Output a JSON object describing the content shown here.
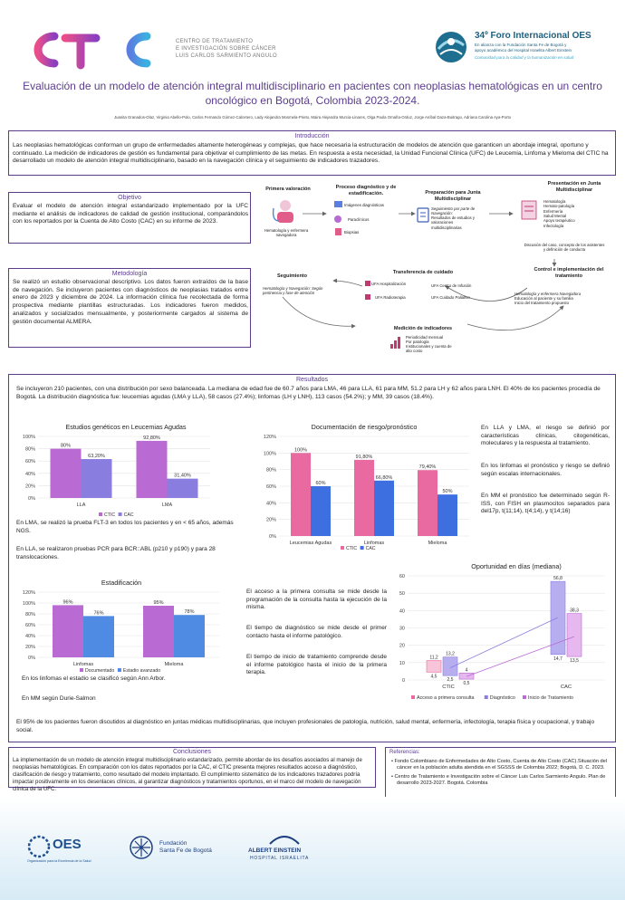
{
  "header": {
    "logo_left_text": "CTIC",
    "logo_left_sub": [
      "CENTRO DE TRATAMIENTO",
      "E INVESTIGACIÓN SOBRE CÁNCER",
      "LUIS CARLOS SARMIENTO ANGULO"
    ],
    "logo_right_title": "34º Foro Internacional OES",
    "logo_right_sub": [
      "En alianza con la Fundación Santa Fe de Bogotá y",
      "apoyo académico del Hospital Israelita Albert Einstein"
    ],
    "logo_right_tagline": "Comunidad para la calidad y la humanización en salud",
    "title_line1": "Evaluación de un modelo de atención integral multidisciplinario en pacientes con neoplasias hematológicas en un centro",
    "title_line2": "oncológico en Bogotá, Colombia 2023-2024.",
    "authors": "Juanita Granados-Olaz, Virginia Abello-Polo, Carlos Fernando Gómez-Calcetero, Lady Alejandra Mosmela-Prieto, Maira Alejandra Murcia-Linares, Olga Paola Omaña-Orduz, Jorge Aníbal Daza-Buitrago, Adriana Carolina Aya-Porto"
  },
  "intro": {
    "title": "Introducción",
    "text": "Las neoplasias hematológicas conforman un grupo de enfermedades altamente heterogéneas y complejas, que hace necesaria la estructuración de modelos de atención que garanticen un abordaje integral, oportuno y continuado. La medición de indicadores de gestión es fundamental para objetivar el cumplimiento de las metas. En respuesta a esta necesidad, la Unidad Funcional Clínica (UFC) de Leucemia, Linfoma y Mieloma del CTIC ha desarrollado un modelo de atención integral multidisciplinario, basado en la navegación clínica y el seguimiento de indicadores trazadores."
  },
  "objective": {
    "title": "Objetivo",
    "text": "Evaluar el modelo de atención integral estandarizado implementado por la UFC mediante el análisis de indicadores de calidad de gestión institucional, comparándolos con los reportados por la Cuenta de Alto Costo (CAC) en su informe de 2023."
  },
  "method": {
    "title": "Metodología",
    "text": "Se realizó un estudio observacional descriptivo. Los datos fueron extraídos de la base de navegación. Se incluyeron pacientes con diagnósticos de neoplasias tratados entre enero de 2023 y diciembre de 2024. La información clínica fue recolectada de forma prospectiva mediante plantillas estructuradas. Los indicadores fueron medidos, analizados y socializados mensualmente, y posteriormente cargados al sistema de gestión documental ALMERA."
  },
  "flow": {
    "primera": {
      "title": "Primera valoración",
      "text": "Hematología y enfermera navegadora"
    },
    "proceso": {
      "title": "Proceso diagnóstico y de estadificación.",
      "items": [
        "Imágenes diagnósticas",
        "Paraclínicos",
        "Biopsias"
      ]
    },
    "preparacion": {
      "title": "Preparación para Junta Multidisciplinar",
      "text": [
        "Seguimiento por parte de Navegación:",
        "Resultados de estudios y valoraciones",
        "multidisciplinarias"
      ]
    },
    "junta": {
      "title": "Presentación en Junta Multidisciplinar",
      "items": [
        "Hematología",
        "Hemato-patología",
        "Enfermería",
        "Salud Mental",
        "Apoyo terapéutico",
        "Infectología"
      ],
      "note": "Discusión del caso, concepto de los asistentes y definición de conducta"
    },
    "control": {
      "title": "Control e implementación del tratamiento",
      "text": [
        "Hematología y enfermera Navegadora",
        "Educación al paciente y su familia",
        "Inicio del tratamiento propuesto"
      ]
    },
    "transferencia": {
      "title": "Transferencia de cuidado",
      "items": [
        "UFA Hospitalización",
        "UFA Centro de Infusión",
        "UFA Radioterapia",
        "UFA Cuidado Paliativo"
      ]
    },
    "seguimiento": {
      "title": "Seguimiento",
      "text": "Hematología y Navegación: Según pertinencia y fase de atención"
    },
    "medicion": {
      "title": "Medición de indicadores",
      "text": [
        "Periodicidad mensual",
        "Por patología",
        "Institucionales y cuenta de",
        "alto costo"
      ]
    }
  },
  "results": {
    "title": "Resultados",
    "intro": "Se incluyeron 210 pacientes, con una distribución por sexo balanceada. La mediana de edad fue de 60.7 años para LMA, 46 para LLA, 61 para MM, 51.2 para LH y 62 años para LNH. El 40% de los pacientes procedía de Bogotá. La distribución diagnóstica fue: leucemias agudas (LMA y LLA), 58 casos (27.4%); linfomas (LH y LNH), 113 casos (54.2%); y MM, 39 casos (18.4%).",
    "lma_note": "En LMA, se realizó la prueba FLT-3 en todos los pacientes y en < 65 años, además NGS.",
    "lla_note": "En LLA, se realizaron pruebas PCR para BCR::ABL (p210 y p190) y para 28 translocaciones.",
    "risk_p1": "En LLA y LMA, el riesgo se definió por características clínicas, citogenéticas, moleculares y la respuesta al tratamiento.",
    "risk_p2": "En los linfomas el pronóstico y riesgo se definió según escalas internacionales.",
    "risk_p3": "En MM el pronóstico fue determinado según R-ISS, con FISH en plasmocitos separados para del17p, t(11;14), t(4;14), y t(14;16)",
    "stage_note1": "En los linfomas el estadio se clasificó según Ann Arbor.",
    "stage_note2": "En MM según Durie-Salmon",
    "times_p1": "El acceso a la primera consulta se mide desde la programación de la consulta hasta la ejecución de la misma.",
    "times_p2": "El tiempo de diagnóstico se mide desde el primer contacto hasta el informe patológico.",
    "times_p3": "El tiempo de inicio de tratamiento comprende desde el informe patológico hasta el inicio de la primera terapia.",
    "final": "El 95% de los pacientes fueron discutidos al diagnóstico en juntas médicas multidisciplinarias, que incluyen profesionales de patología, nutrición, salud mental, enfermería, infectología, terapia física y ocupacional, y trabajo social."
  },
  "conclusions": {
    "title": "Conclusiones",
    "text": "La implementación de un modelo de atención integral multidisciplinario estandarizado, permite abordar de los desafíos asociados al manejo de neoplasias hematológicas. En comparación con los datos reportados por la CAC, el CTIC presenta mejores resultados acceso a diagnóstico, clasificación de riesgo y tratamiento, como resultado del modelo implantado. El cumplimiento sistemático de los indicadores trazadores podría impactar positivamente en los desenlaces clínicos, al garantizar diagnósticos y tratamientos oportunos, en el marco del modelo de navegación clínica de la UFC."
  },
  "references": {
    "title": "Referencias:",
    "items": [
      "Fondo Colombiano de Enfermedades de Alto Costo, Cuenta de Alto Costo (CAC).Situación del cáncer en la población adulta atendida en el SGSSS de Colombia 2022; Bogotá, D. C. 2023.",
      "Centro de Tratamiento e Investigación sobre el Cáncer Luis Carlos Sarmiento Angulo. Plan de desarrollo 2023-2027. Bogotá. Colombia"
    ]
  },
  "footer": {
    "oes": "OES",
    "oes_sub": "Organización para la Excelencia de la Salud",
    "fsfb": [
      "Fundación",
      "Santa Fe de Bogotá"
    ],
    "einstein": [
      "ALBERT EINSTEIN",
      "HOSPITAL ISRAELITA"
    ]
  },
  "colors": {
    "ctic": "#b96ad3",
    "cac": "#8a7de0",
    "doc": "#b96ad3",
    "est": "#4f8ae3",
    "bar_ctic": "#e86aa0",
    "bar_cac": "#3d6fe0",
    "purple": "#5b3d8c"
  },
  "chart_data": [
    {
      "type": "bar",
      "title": "Estudios genéticos en Leucemias Agudas",
      "categories": [
        "LLA",
        "LMA"
      ],
      "series": [
        {
          "name": "CTIC",
          "values": [
            80,
            92.8
          ],
          "labels": [
            "80%",
            "92,80%"
          ]
        },
        {
          "name": "CAC",
          "values": [
            63.2,
            31.4
          ],
          "labels": [
            "63,20%",
            "31,40%"
          ]
        }
      ],
      "ylim": [
        0,
        100
      ],
      "yticks": [
        "0%",
        "20%",
        "40%",
        "60%",
        "80%",
        "100%"
      ]
    },
    {
      "type": "bar",
      "title": "Documentación de riesgo/pronóstico",
      "categories": [
        "Leucemias Agudas",
        "Linfomas",
        "Mieloma"
      ],
      "series": [
        {
          "name": "CTIC",
          "values": [
            100,
            91.8,
            79.4
          ],
          "labels": [
            "100%",
            "91,80%",
            "79,40%"
          ]
        },
        {
          "name": "CAC",
          "values": [
            60,
            66.8,
            50
          ],
          "labels": [
            "60%",
            "66,80%",
            "50%"
          ]
        }
      ],
      "ylim": [
        0,
        120
      ],
      "yticks": [
        "0%",
        "20%",
        "40%",
        "60%",
        "80%",
        "100%",
        "120%"
      ]
    },
    {
      "type": "bar",
      "title": "Estadificación",
      "categories": [
        "Linfomas",
        "Mieloma"
      ],
      "series": [
        {
          "name": "Documentado",
          "values": [
            96,
            95
          ],
          "labels": [
            "96%",
            "95%"
          ]
        },
        {
          "name": "Estadio avanzado",
          "values": [
            76,
            78
          ],
          "labels": [
            "76%",
            "78%"
          ]
        }
      ],
      "ylim": [
        0,
        120
      ],
      "yticks": [
        "0%",
        "20%",
        "40%",
        "60%",
        "80%",
        "100%",
        "120%"
      ]
    },
    {
      "type": "box",
      "title": "Oportunidad en días (mediana)",
      "categories": [
        "CTIC",
        "CAC"
      ],
      "series": [
        {
          "name": "Acceso a primera consulta",
          "ranges": [
            [
              4.5,
              11.2
            ]
          ]
        },
        {
          "name": "Diagnóstico",
          "ranges": [
            [
              2.5,
              13.2
            ],
            [
              14.7,
              56.8
            ]
          ]
        },
        {
          "name": "Inicio de Tratamiento",
          "ranges": [
            [
              0.5,
              4
            ],
            [
              13.5,
              38.3
            ]
          ]
        }
      ],
      "labels": [
        "11,2",
        "13,2",
        "4",
        "4,5",
        "2,5",
        "0,5",
        "56,8",
        "38,3",
        "14,7",
        "13,5"
      ],
      "ylim": [
        0,
        60
      ],
      "yticks": [
        "0",
        "10",
        "20",
        "30",
        "40",
        "50",
        "60"
      ]
    }
  ]
}
